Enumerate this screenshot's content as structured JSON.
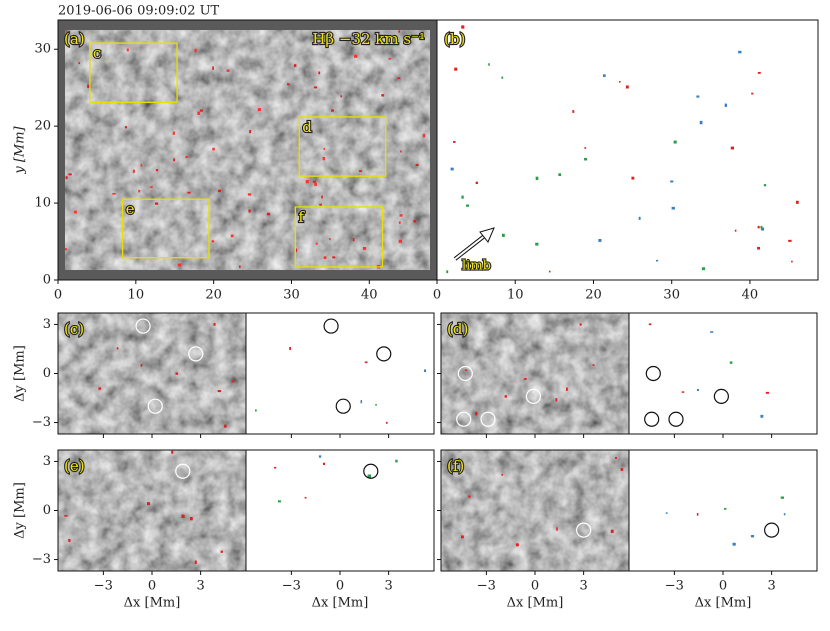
{
  "timestamp": "2019-06-06 09:09:02 UT",
  "top": {
    "xlim": [
      0,
      48.7
    ],
    "ylim": [
      0,
      33.8
    ],
    "xticks": [
      0,
      10,
      20,
      30,
      40
    ],
    "yticks": [
      0,
      10,
      20,
      30
    ],
    "ylabel": "y [Mm]",
    "panel_a": {
      "label": "(a)",
      "annotation": "Hβ −32 km s⁻¹",
      "boxes": [
        {
          "label": "c",
          "x": [
            4.1,
            15.3
          ],
          "y": [
            23.1,
            30.8
          ]
        },
        {
          "label": "d",
          "x": [
            31.0,
            42.1
          ],
          "y": [
            13.5,
            21.2
          ]
        },
        {
          "label": "e",
          "x": [
            8.3,
            19.4
          ],
          "y": [
            2.9,
            10.5
          ]
        },
        {
          "label": "f",
          "x": [
            30.5,
            41.7
          ],
          "y": [
            1.7,
            9.5
          ]
        }
      ]
    },
    "panel_b": {
      "label": "(b)",
      "arrow_label": "limb"
    }
  },
  "zooms": {
    "xlim": [
      -5.8,
      5.8
    ],
    "ylim": [
      -3.7,
      3.7
    ],
    "xticks": [
      {
        "value": -3,
        "label": "−3"
      },
      0,
      3
    ],
    "yticks": [
      {
        "value": -3,
        "label": "−3"
      },
      0,
      3
    ],
    "xlabel": "Δx [Mm]",
    "ylabel": "Δy [Mm]",
    "panels": [
      {
        "label": "(c)",
        "circles": [
          [
            -0.55,
            2.9
          ],
          [
            2.7,
            1.2
          ],
          [
            0.2,
            -2.0
          ]
        ]
      },
      {
        "label": "(d)",
        "circles": [
          [
            -4.3,
            0.0
          ],
          [
            -4.4,
            -2.8
          ],
          [
            -2.9,
            -2.8
          ],
          [
            -0.1,
            -1.4
          ]
        ]
      },
      {
        "label": "(e)",
        "circles": [
          [
            1.9,
            2.4
          ]
        ]
      },
      {
        "label": "(f)",
        "circles": [
          [
            3.0,
            -1.2
          ]
        ]
      }
    ]
  }
}
